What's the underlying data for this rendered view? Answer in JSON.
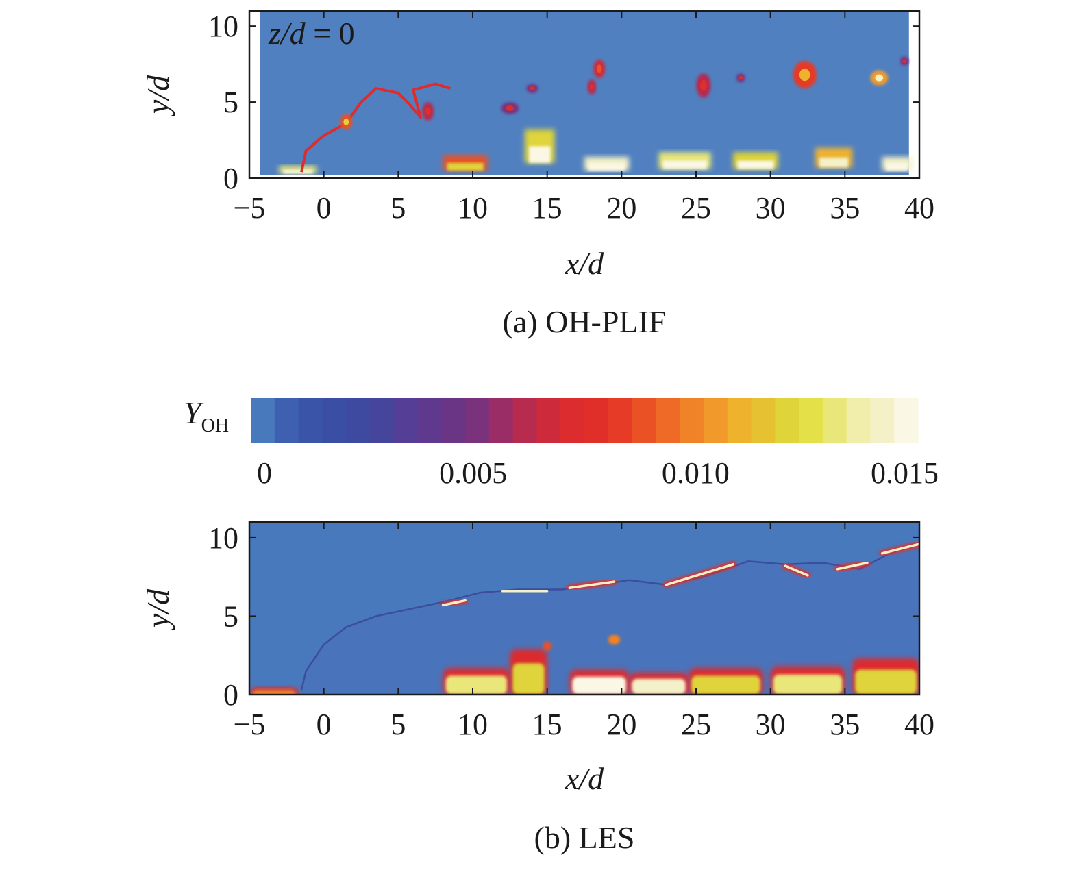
{
  "chart_data": [
    {
      "type": "heatmap",
      "panel": "a",
      "caption": "(a) OH-PLIF",
      "annotation": {
        "var": "z/d",
        "op": " = ",
        "value": "0"
      },
      "xlabel": "x/d",
      "ylabel": "y/d",
      "xlim": [
        -5,
        40
      ],
      "ylim": [
        0,
        11
      ],
      "x_ticks": [
        -5,
        0,
        5,
        10,
        15,
        20,
        25,
        30,
        35,
        40
      ],
      "y_ticks": [
        0,
        5,
        10
      ],
      "x_tick_labels": [
        "−5",
        "0",
        "5",
        "10",
        "15",
        "20",
        "25",
        "30",
        "35",
        "40"
      ],
      "y_tick_labels": [
        "0",
        "5",
        "10"
      ],
      "image_xrange": [
        -4.3,
        39.3
      ],
      "background_value": 0.0002,
      "flame_front": [
        [
          -1.5,
          0.4
        ],
        [
          -1.2,
          1.8
        ],
        [
          0,
          2.8
        ],
        [
          1.5,
          3.6
        ],
        [
          2.5,
          5.0
        ],
        [
          3.5,
          5.9
        ],
        [
          5.0,
          5.6
        ],
        [
          5.8,
          4.8
        ],
        [
          6.5,
          4.0
        ],
        [
          6.0,
          5.8
        ],
        [
          7.5,
          6.2
        ],
        [
          8.5,
          5.9
        ]
      ],
      "hot_spots": [
        {
          "x": 1.5,
          "y": 3.7,
          "rx": 0.4,
          "ry": 0.5,
          "value": 0.012
        },
        {
          "x": 7.0,
          "y": 4.4,
          "rx": 0.4,
          "ry": 0.6,
          "value": 0.008
        },
        {
          "x": 12.5,
          "y": 4.6,
          "rx": 0.6,
          "ry": 0.4,
          "value": 0.007
        },
        {
          "x": 14.0,
          "y": 5.9,
          "rx": 0.4,
          "ry": 0.3,
          "value": 0.007
        },
        {
          "x": 18.5,
          "y": 7.2,
          "rx": 0.4,
          "ry": 0.6,
          "value": 0.009
        },
        {
          "x": 18.0,
          "y": 6.0,
          "rx": 0.3,
          "ry": 0.5,
          "value": 0.008
        },
        {
          "x": 25.5,
          "y": 6.1,
          "rx": 0.5,
          "ry": 0.8,
          "value": 0.008
        },
        {
          "x": 28.0,
          "y": 6.6,
          "rx": 0.3,
          "ry": 0.3,
          "value": 0.007
        },
        {
          "x": 32.3,
          "y": 6.8,
          "rx": 0.8,
          "ry": 0.9,
          "value": 0.011
        },
        {
          "x": 37.3,
          "y": 6.6,
          "rx": 0.6,
          "ry": 0.5,
          "value": 0.014
        },
        {
          "x": 39.0,
          "y": 7.7,
          "rx": 0.3,
          "ry": 0.3,
          "value": 0.007
        }
      ],
      "wall_region": [
        {
          "x": -3.0,
          "y": 0.3,
          "w": 2.5,
          "h": 0.5,
          "value": 0.013
        },
        {
          "x": 8.0,
          "y": 0.5,
          "w": 3.0,
          "h": 1.0,
          "value": 0.009
        },
        {
          "x": 13.5,
          "y": 1.0,
          "w": 2.0,
          "h": 2.2,
          "value": 0.012
        },
        {
          "x": 17.5,
          "y": 0.5,
          "w": 3.0,
          "h": 0.9,
          "value": 0.014
        },
        {
          "x": 22.5,
          "y": 0.6,
          "w": 3.5,
          "h": 1.1,
          "value": 0.013
        },
        {
          "x": 27.5,
          "y": 0.6,
          "w": 3.0,
          "h": 1.1,
          "value": 0.012
        },
        {
          "x": 33.0,
          "y": 0.7,
          "w": 2.5,
          "h": 1.3,
          "value": 0.011
        },
        {
          "x": 37.5,
          "y": 0.5,
          "w": 2.0,
          "h": 0.9,
          "value": 0.014
        }
      ]
    },
    {
      "type": "heatmap",
      "panel": "b",
      "caption": "(b) LES",
      "xlabel": "x/d",
      "ylabel": "y/d",
      "xlim": [
        -5,
        40
      ],
      "ylim": [
        0,
        11
      ],
      "x_ticks": [
        -5,
        0,
        5,
        10,
        15,
        20,
        25,
        30,
        35,
        40
      ],
      "y_ticks": [
        0,
        5,
        10
      ],
      "x_tick_labels": [
        "−5",
        "0",
        "5",
        "10",
        "15",
        "20",
        "25",
        "30",
        "35",
        "40"
      ],
      "y_tick_labels": [
        "0",
        "5",
        "10"
      ],
      "background_value": 0.0003,
      "plume_edge": [
        [
          -1.5,
          0.3
        ],
        [
          -1.2,
          1.5
        ],
        [
          0,
          3.2
        ],
        [
          1.5,
          4.3
        ],
        [
          3.5,
          5.0
        ],
        [
          5.5,
          5.4
        ],
        [
          8.0,
          5.9
        ],
        [
          10.5,
          6.5
        ],
        [
          13.0,
          6.7
        ],
        [
          16.0,
          6.7
        ],
        [
          18.5,
          7.0
        ],
        [
          20.5,
          7.3
        ],
        [
          23.0,
          7.0
        ],
        [
          25.5,
          7.5
        ],
        [
          28.5,
          8.5
        ],
        [
          31.0,
          8.3
        ],
        [
          33.5,
          8.4
        ],
        [
          36.0,
          8.0
        ],
        [
          38.0,
          9.0
        ],
        [
          40.0,
          9.6
        ]
      ],
      "flame_sheets": [
        [
          [
            8.0,
            5.7
          ],
          [
            9.5,
            6.0
          ]
        ],
        [
          [
            12.0,
            6.6
          ],
          [
            15.0,
            6.6
          ]
        ],
        [
          [
            16.5,
            6.8
          ],
          [
            19.5,
            7.2
          ]
        ],
        [
          [
            23.0,
            7.0
          ],
          [
            27.5,
            8.3
          ]
        ],
        [
          [
            31.0,
            8.2
          ],
          [
            32.5,
            7.6
          ]
        ],
        [
          [
            34.5,
            8.0
          ],
          [
            36.5,
            8.4
          ]
        ],
        [
          [
            37.5,
            9.0
          ],
          [
            40.0,
            9.6
          ]
        ]
      ],
      "wall_region": [
        {
          "x": -5.0,
          "y": 0.0,
          "w": 3.3,
          "h": 0.45,
          "value": 0.01
        },
        {
          "x": 8.0,
          "y": 0.3,
          "w": 4.5,
          "h": 1.4,
          "value": 0.013
        },
        {
          "x": 12.5,
          "y": 0.3,
          "w": 2.5,
          "h": 2.6,
          "value": 0.012
        },
        {
          "x": 16.5,
          "y": 0.3,
          "w": 4.0,
          "h": 1.3,
          "value": 0.015
        },
        {
          "x": 20.5,
          "y": 0.3,
          "w": 4.0,
          "h": 1.1,
          "value": 0.014
        },
        {
          "x": 24.5,
          "y": 0.3,
          "w": 5.0,
          "h": 1.4,
          "value": 0.012
        },
        {
          "x": 30.0,
          "y": 0.3,
          "w": 5.0,
          "h": 1.5,
          "value": 0.013
        },
        {
          "x": 35.5,
          "y": 0.3,
          "w": 4.5,
          "h": 2.0,
          "value": 0.012
        }
      ],
      "pockets": [
        {
          "x": 19.5,
          "y": 3.5,
          "rx": 0.4,
          "ry": 0.3,
          "value": 0.01
        },
        {
          "x": 15.0,
          "y": 3.1,
          "rx": 0.3,
          "ry": 0.3,
          "value": 0.009
        }
      ]
    }
  ],
  "colorbar": {
    "label_main": "Y",
    "label_sub": "OH",
    "min": 0,
    "max": 0.015,
    "ticks": [
      0,
      0.005,
      0.01,
      0.015
    ],
    "tick_labels": [
      "0",
      "0.005",
      "0.010",
      "0.015"
    ],
    "levels": [
      "#4879bd",
      "#3f5fb0",
      "#3a55a8",
      "#3a4fa3",
      "#3d4aa0",
      "#45459c",
      "#553e96",
      "#5f398d",
      "#6a3585",
      "#7a327c",
      "#9a2c66",
      "#b72b4f",
      "#cd2b3c",
      "#dc2c2e",
      "#e02e29",
      "#e53b27",
      "#ea5125",
      "#ee6a26",
      "#f08328",
      "#f19a2b",
      "#efb22d",
      "#e6c232",
      "#dfd43a",
      "#e3e048",
      "#e9e77a",
      "#f0eeaa",
      "#f4f1c8",
      "#faf8e4"
    ]
  },
  "colors": {
    "axis": "#1a1a1a",
    "plif_background": "#4c7fbd",
    "les_background": "#4166b3"
  }
}
